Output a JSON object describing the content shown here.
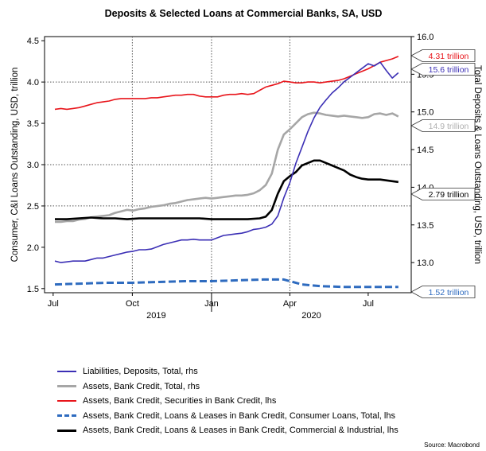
{
  "chart_data": {
    "type": "line",
    "title": "Deposits & Selected Loans at Commercial Banks, SA, USD",
    "ylabel_left": "Consumer, C&I Loans Outstanding, USD, trillion",
    "ylabel_right": "Total Deposits & Loans Outstanding, USD, trillion",
    "ylim_left": [
      1.45,
      4.55
    ],
    "ylim_right": [
      12.6,
      16.0
    ],
    "yticks_left": [
      "4.5",
      "4.0",
      "3.5",
      "3.0",
      "2.5",
      "2.0",
      "1.5"
    ],
    "yticks_right": [
      "16.0",
      "15.5",
      "15.0",
      "14.5",
      "14.0",
      "13.5",
      "13.0"
    ],
    "xticks": [
      "Jul",
      "Oct",
      "Jan",
      "Apr",
      "Jul"
    ],
    "year_labels": [
      "2019",
      "2020"
    ],
    "grid": "dotted, at Oct 2019, Jan 2020, Apr 2020 and at left-axis 2.5, 3.0, 4.0",
    "series": [
      {
        "name": "Liabilities, Deposits, Total, rhs",
        "axis": "right",
        "color": "#3b2fb5",
        "end_label": "15.6 trillion",
        "x": [
          "2019-07-03",
          "2019-07-10",
          "2019-07-17",
          "2019-07-24",
          "2019-07-31",
          "2019-08-07",
          "2019-08-14",
          "2019-08-21",
          "2019-08-28",
          "2019-09-04",
          "2019-09-11",
          "2019-09-18",
          "2019-09-25",
          "2019-10-02",
          "2019-10-09",
          "2019-10-16",
          "2019-10-23",
          "2019-10-30",
          "2019-11-06",
          "2019-11-13",
          "2019-11-20",
          "2019-11-27",
          "2019-12-04",
          "2019-12-11",
          "2019-12-18",
          "2019-12-25",
          "2020-01-01",
          "2020-01-08",
          "2020-01-15",
          "2020-01-22",
          "2020-01-29",
          "2020-02-05",
          "2020-02-12",
          "2020-02-19",
          "2020-02-26",
          "2020-03-04",
          "2020-03-11",
          "2020-03-18",
          "2020-03-25",
          "2020-04-01",
          "2020-04-08",
          "2020-04-15",
          "2020-04-22",
          "2020-04-29",
          "2020-05-06",
          "2020-05-13",
          "2020-05-20",
          "2020-05-27",
          "2020-06-03",
          "2020-06-10",
          "2020-06-17",
          "2020-06-24",
          "2020-07-01",
          "2020-07-08",
          "2020-07-15",
          "2020-07-22",
          "2020-07-29",
          "2020-08-05"
        ],
        "values": [
          13.02,
          13.0,
          13.01,
          13.02,
          13.02,
          13.02,
          13.04,
          13.06,
          13.06,
          13.08,
          13.1,
          13.12,
          13.14,
          13.15,
          13.17,
          13.17,
          13.18,
          13.21,
          13.24,
          13.26,
          13.28,
          13.3,
          13.3,
          13.31,
          13.3,
          13.3,
          13.3,
          13.33,
          13.36,
          13.37,
          13.38,
          13.39,
          13.41,
          13.44,
          13.45,
          13.47,
          13.51,
          13.62,
          13.86,
          14.06,
          14.32,
          14.53,
          14.74,
          14.92,
          15.06,
          15.16,
          15.25,
          15.32,
          15.4,
          15.46,
          15.52,
          15.58,
          15.64,
          15.61,
          15.66,
          15.55,
          15.45,
          15.52
        ]
      },
      {
        "name": "Assets, Bank Credit, Total, rhs",
        "axis": "right",
        "color": "#a6a6a6",
        "end_label": "14.9 trillion",
        "x": [
          "2019-07-03",
          "2019-07-10",
          "2019-07-17",
          "2019-07-24",
          "2019-07-31",
          "2019-08-07",
          "2019-08-14",
          "2019-08-21",
          "2019-08-28",
          "2019-09-04",
          "2019-09-11",
          "2019-09-18",
          "2019-09-25",
          "2019-10-02",
          "2019-10-09",
          "2019-10-16",
          "2019-10-23",
          "2019-10-30",
          "2019-11-06",
          "2019-11-13",
          "2019-11-20",
          "2019-11-27",
          "2019-12-04",
          "2019-12-11",
          "2019-12-18",
          "2019-12-25",
          "2020-01-01",
          "2020-01-08",
          "2020-01-15",
          "2020-01-22",
          "2020-01-29",
          "2020-02-05",
          "2020-02-12",
          "2020-02-19",
          "2020-02-26",
          "2020-03-04",
          "2020-03-11",
          "2020-03-18",
          "2020-03-25",
          "2020-04-01",
          "2020-04-08",
          "2020-04-15",
          "2020-04-22",
          "2020-04-29",
          "2020-05-06",
          "2020-05-13",
          "2020-05-20",
          "2020-05-27",
          "2020-06-03",
          "2020-06-10",
          "2020-06-17",
          "2020-06-24",
          "2020-07-01",
          "2020-07-08",
          "2020-07-15",
          "2020-07-22",
          "2020-07-29",
          "2020-08-05"
        ],
        "values": [
          13.54,
          13.54,
          13.55,
          13.55,
          13.57,
          13.58,
          13.6,
          13.61,
          13.62,
          13.63,
          13.66,
          13.68,
          13.7,
          13.69,
          13.71,
          13.72,
          13.74,
          13.75,
          13.76,
          13.78,
          13.79,
          13.81,
          13.83,
          13.84,
          13.85,
          13.86,
          13.85,
          13.86,
          13.87,
          13.88,
          13.89,
          13.89,
          13.9,
          13.92,
          13.96,
          14.03,
          14.18,
          14.5,
          14.7,
          14.77,
          14.85,
          14.93,
          14.97,
          14.99,
          14.98,
          14.96,
          14.95,
          14.94,
          14.95,
          14.94,
          14.93,
          14.92,
          14.93,
          14.97,
          14.98,
          14.96,
          14.98,
          14.94
        ]
      },
      {
        "name": "Assets, Bank Credit, Securities in Bank Credit, lhs",
        "axis": "left",
        "color": "#e8151b",
        "end_label": "4.31 trillion",
        "x": [
          "2019-07-03",
          "2019-07-10",
          "2019-07-17",
          "2019-07-24",
          "2019-07-31",
          "2019-08-07",
          "2019-08-14",
          "2019-08-21",
          "2019-08-28",
          "2019-09-04",
          "2019-09-11",
          "2019-09-18",
          "2019-09-25",
          "2019-10-02",
          "2019-10-09",
          "2019-10-16",
          "2019-10-23",
          "2019-10-30",
          "2019-11-06",
          "2019-11-13",
          "2019-11-20",
          "2019-11-27",
          "2019-12-04",
          "2019-12-11",
          "2019-12-18",
          "2019-12-25",
          "2020-01-01",
          "2020-01-08",
          "2020-01-15",
          "2020-01-22",
          "2020-01-29",
          "2020-02-05",
          "2020-02-12",
          "2020-02-19",
          "2020-02-26",
          "2020-03-04",
          "2020-03-11",
          "2020-03-18",
          "2020-03-25",
          "2020-04-01",
          "2020-04-08",
          "2020-04-15",
          "2020-04-22",
          "2020-04-29",
          "2020-05-06",
          "2020-05-13",
          "2020-05-20",
          "2020-05-27",
          "2020-06-03",
          "2020-06-10",
          "2020-06-17",
          "2020-06-24",
          "2020-07-01",
          "2020-07-08",
          "2020-07-15",
          "2020-07-22",
          "2020-07-29",
          "2020-08-05"
        ],
        "values": [
          3.67,
          3.68,
          3.67,
          3.68,
          3.69,
          3.71,
          3.73,
          3.75,
          3.76,
          3.77,
          3.79,
          3.8,
          3.8,
          3.8,
          3.8,
          3.8,
          3.81,
          3.81,
          3.82,
          3.83,
          3.84,
          3.84,
          3.85,
          3.85,
          3.83,
          3.82,
          3.82,
          3.82,
          3.84,
          3.85,
          3.85,
          3.86,
          3.85,
          3.86,
          3.9,
          3.94,
          3.96,
          3.98,
          4.01,
          4.0,
          3.99,
          3.99,
          4.0,
          4.0,
          3.99,
          4.0,
          4.01,
          4.02,
          4.04,
          4.07,
          4.1,
          4.13,
          4.16,
          4.2,
          4.24,
          4.26,
          4.28,
          4.31
        ]
      },
      {
        "name": "Assets, Bank Credit, Loans & Leases in Bank Credit, Consumer Loans, Total, lhs",
        "axis": "left",
        "color": "#2e6bbf",
        "end_label": "1.52 trillion",
        "x": [
          "2019-07-03",
          "2019-08-01",
          "2019-09-01",
          "2019-10-01",
          "2019-11-01",
          "2019-12-01",
          "2020-01-01",
          "2020-02-01",
          "2020-03-01",
          "2020-03-25",
          "2020-04-15",
          "2020-05-06",
          "2020-06-01",
          "2020-07-01",
          "2020-08-05"
        ],
        "values": [
          1.55,
          1.56,
          1.57,
          1.57,
          1.58,
          1.59,
          1.59,
          1.6,
          1.61,
          1.61,
          1.55,
          1.53,
          1.52,
          1.52,
          1.52
        ]
      },
      {
        "name": "Assets, Bank Credit, Loans & Leases in Bank Credit, Commercial & Industrial, lhs",
        "axis": "left",
        "color": "#000000",
        "end_label": "2.79 trillion",
        "x": [
          "2019-07-03",
          "2019-07-17",
          "2019-07-31",
          "2019-08-14",
          "2019-08-28",
          "2019-09-11",
          "2019-09-25",
          "2019-10-09",
          "2019-10-23",
          "2019-11-06",
          "2019-11-20",
          "2019-12-04",
          "2019-12-18",
          "2020-01-01",
          "2020-01-15",
          "2020-01-29",
          "2020-02-12",
          "2020-02-26",
          "2020-03-04",
          "2020-03-11",
          "2020-03-18",
          "2020-03-25",
          "2020-04-01",
          "2020-04-08",
          "2020-04-15",
          "2020-04-22",
          "2020-04-29",
          "2020-05-06",
          "2020-05-13",
          "2020-05-20",
          "2020-05-27",
          "2020-06-03",
          "2020-06-10",
          "2020-06-17",
          "2020-06-24",
          "2020-07-01",
          "2020-07-15",
          "2020-07-29",
          "2020-08-05"
        ],
        "values": [
          2.34,
          2.34,
          2.35,
          2.36,
          2.35,
          2.35,
          2.34,
          2.35,
          2.35,
          2.35,
          2.35,
          2.35,
          2.35,
          2.34,
          2.34,
          2.34,
          2.34,
          2.35,
          2.37,
          2.45,
          2.65,
          2.8,
          2.86,
          2.91,
          2.99,
          3.02,
          3.05,
          3.05,
          3.02,
          2.99,
          2.96,
          2.93,
          2.88,
          2.85,
          2.83,
          2.82,
          2.82,
          2.8,
          2.79
        ]
      }
    ]
  },
  "source": "Source: Macrobond"
}
